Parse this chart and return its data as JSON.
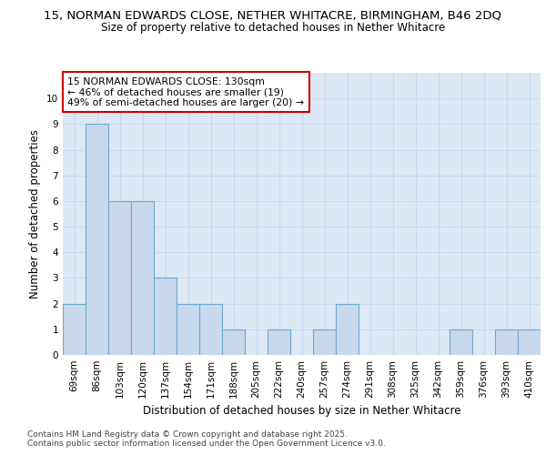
{
  "title_line1": "15, NORMAN EDWARDS CLOSE, NETHER WHITACRE, BIRMINGHAM, B46 2DQ",
  "title_line2": "Size of property relative to detached houses in Nether Whitacre",
  "xlabel": "Distribution of detached houses by size in Nether Whitacre",
  "ylabel": "Number of detached properties",
  "categories": [
    "69sqm",
    "86sqm",
    "103sqm",
    "120sqm",
    "137sqm",
    "154sqm",
    "171sqm",
    "188sqm",
    "205sqm",
    "222sqm",
    "240sqm",
    "257sqm",
    "274sqm",
    "291sqm",
    "308sqm",
    "325sqm",
    "342sqm",
    "359sqm",
    "376sqm",
    "393sqm",
    "410sqm"
  ],
  "values": [
    2,
    9,
    6,
    6,
    3,
    2,
    2,
    1,
    0,
    1,
    0,
    1,
    2,
    0,
    0,
    0,
    0,
    1,
    0,
    1,
    1
  ],
  "bar_color": "#c8d9ee",
  "bar_edge_color": "#6aaad4",
  "annotation_text": "15 NORMAN EDWARDS CLOSE: 130sqm\n← 46% of detached houses are smaller (19)\n49% of semi-detached houses are larger (20) →",
  "annotation_box_color": "#ffffff",
  "annotation_box_edge_color": "#cc0000",
  "ylim": [
    0,
    11
  ],
  "yticks": [
    0,
    1,
    2,
    3,
    4,
    5,
    6,
    7,
    8,
    9,
    10,
    11
  ],
  "grid_color": "#c8d8ec",
  "background_color": "#dde8f5",
  "footer_text": "Contains HM Land Registry data © Crown copyright and database right 2025.\nContains public sector information licensed under the Open Government Licence v3.0.",
  "title_fontsize": 9.5,
  "subtitle_fontsize": 8.5,
  "axis_label_fontsize": 8.5,
  "tick_fontsize": 7.5
}
